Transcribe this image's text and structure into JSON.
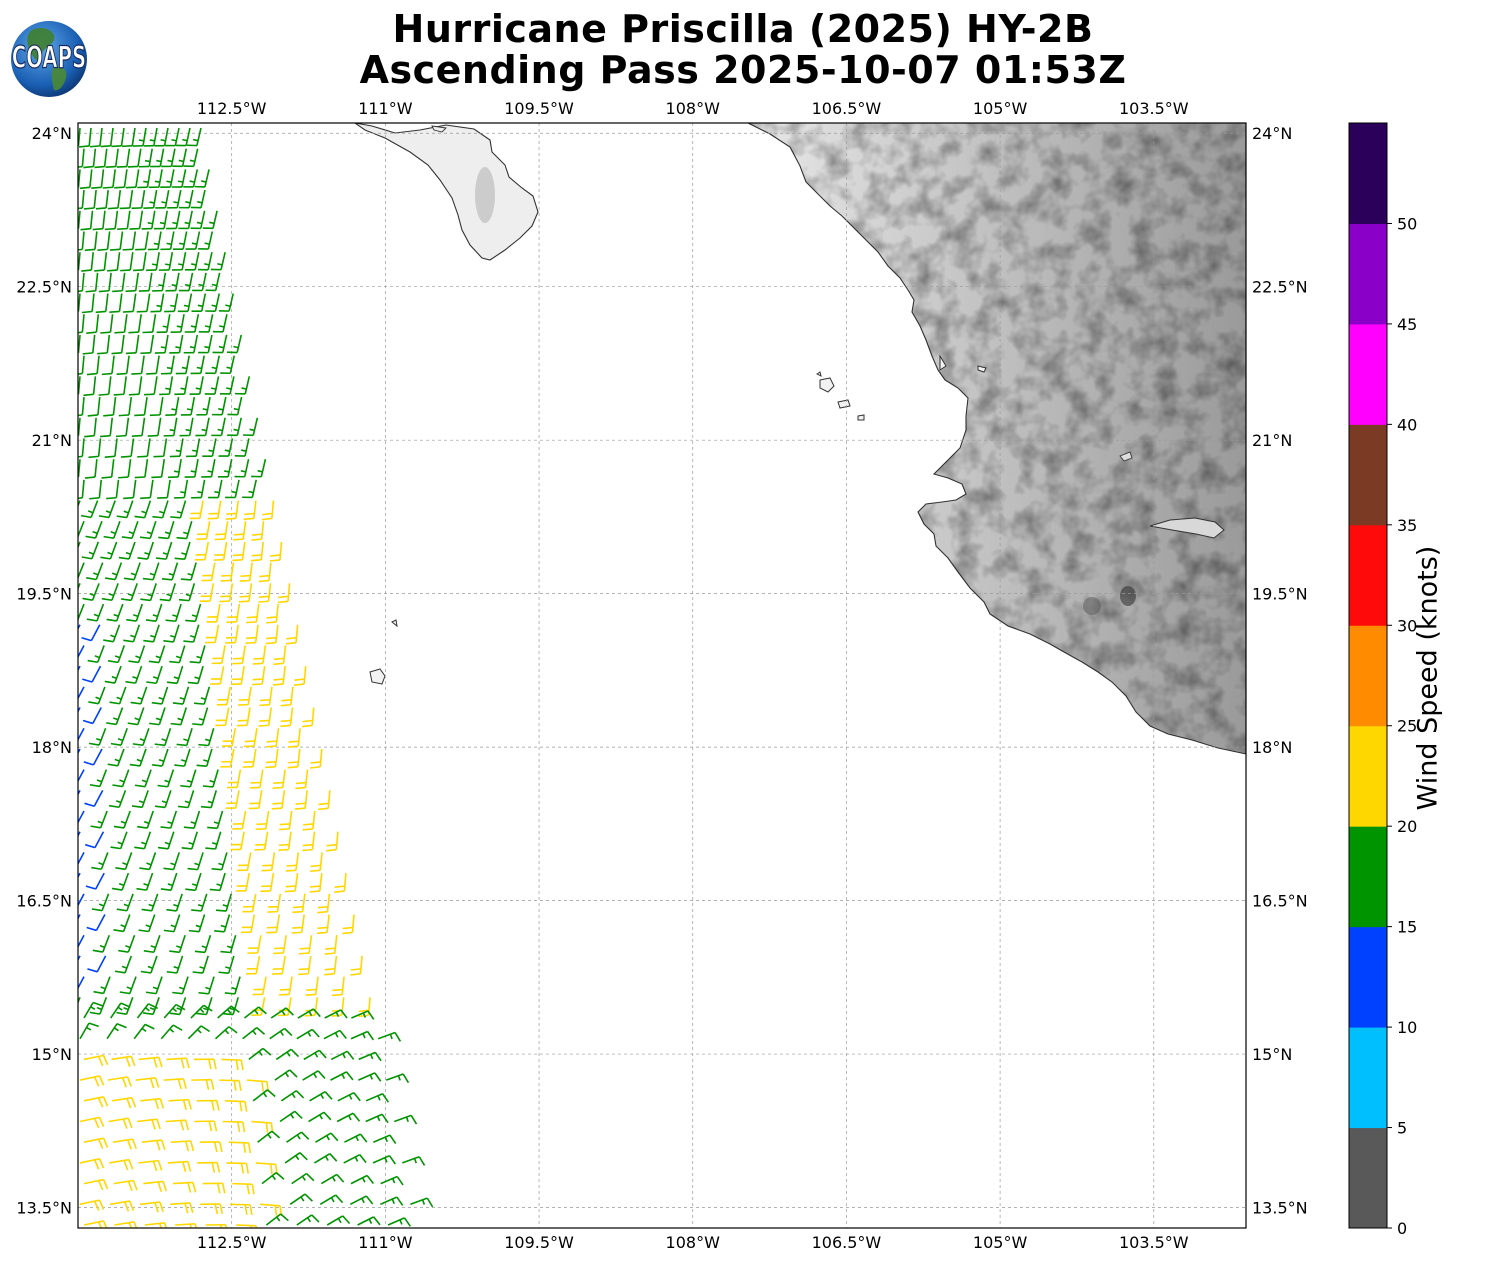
{
  "title": {
    "line1": "Hurricane Priscilla (2025) HY-2B",
    "line2": "Ascending Pass 2025-10-07 01:53Z"
  },
  "logo": {
    "text": "COAPS",
    "icon": "globe-icon"
  },
  "map": {
    "lon_range": [
      -114,
      -102.6
    ],
    "lat_range": [
      13.3,
      24.1
    ],
    "lon_ticks": [
      {
        "value": -112.5,
        "label": "112.5°W"
      },
      {
        "value": -111,
        "label": "111°W"
      },
      {
        "value": -109.5,
        "label": "109.5°W"
      },
      {
        "value": -108,
        "label": "108°W"
      },
      {
        "value": -106.5,
        "label": "106.5°W"
      },
      {
        "value": -105,
        "label": "105°W"
      },
      {
        "value": -103.5,
        "label": "103.5°W"
      }
    ],
    "lat_ticks": [
      {
        "value": 24,
        "label": "24°N"
      },
      {
        "value": 22.5,
        "label": "22.5°N"
      },
      {
        "value": 21,
        "label": "21°N"
      },
      {
        "value": 19.5,
        "label": "19.5°N"
      },
      {
        "value": 18,
        "label": "18°N"
      },
      {
        "value": 16.5,
        "label": "16.5°N"
      },
      {
        "value": 15,
        "label": "15°N"
      },
      {
        "value": 13.5,
        "label": "13.5°N"
      }
    ],
    "gridlines": true,
    "land_shading": "grayscale-terrain"
  },
  "colorbar": {
    "title": "Wind Speed (knots)",
    "bins": [
      {
        "min": 0,
        "max": 5,
        "color": "#595959"
      },
      {
        "min": 5,
        "max": 10,
        "color": "#00bfff"
      },
      {
        "min": 10,
        "max": 15,
        "color": "#0040ff"
      },
      {
        "min": 15,
        "max": 20,
        "color": "#009400"
      },
      {
        "min": 20,
        "max": 25,
        "color": "#ffd700"
      },
      {
        "min": 25,
        "max": 30,
        "color": "#ff8c00"
      },
      {
        "min": 30,
        "max": 35,
        "color": "#ff0a0a"
      },
      {
        "min": 35,
        "max": 40,
        "color": "#7b3a24"
      },
      {
        "min": 40,
        "max": 45,
        "color": "#ff00ff"
      },
      {
        "min": 45,
        "max": 50,
        "color": "#8b00c8"
      },
      {
        "min": 50,
        "max": 55,
        "color": "#2a005a"
      }
    ],
    "ticks": [
      0,
      5,
      10,
      15,
      20,
      25,
      30,
      35,
      40,
      45,
      50
    ]
  },
  "wind_swath": {
    "description_colors": {
      "10-15": "#0040ff",
      "15-20": "#009400",
      "20-25": "#ffd700"
    }
  }
}
